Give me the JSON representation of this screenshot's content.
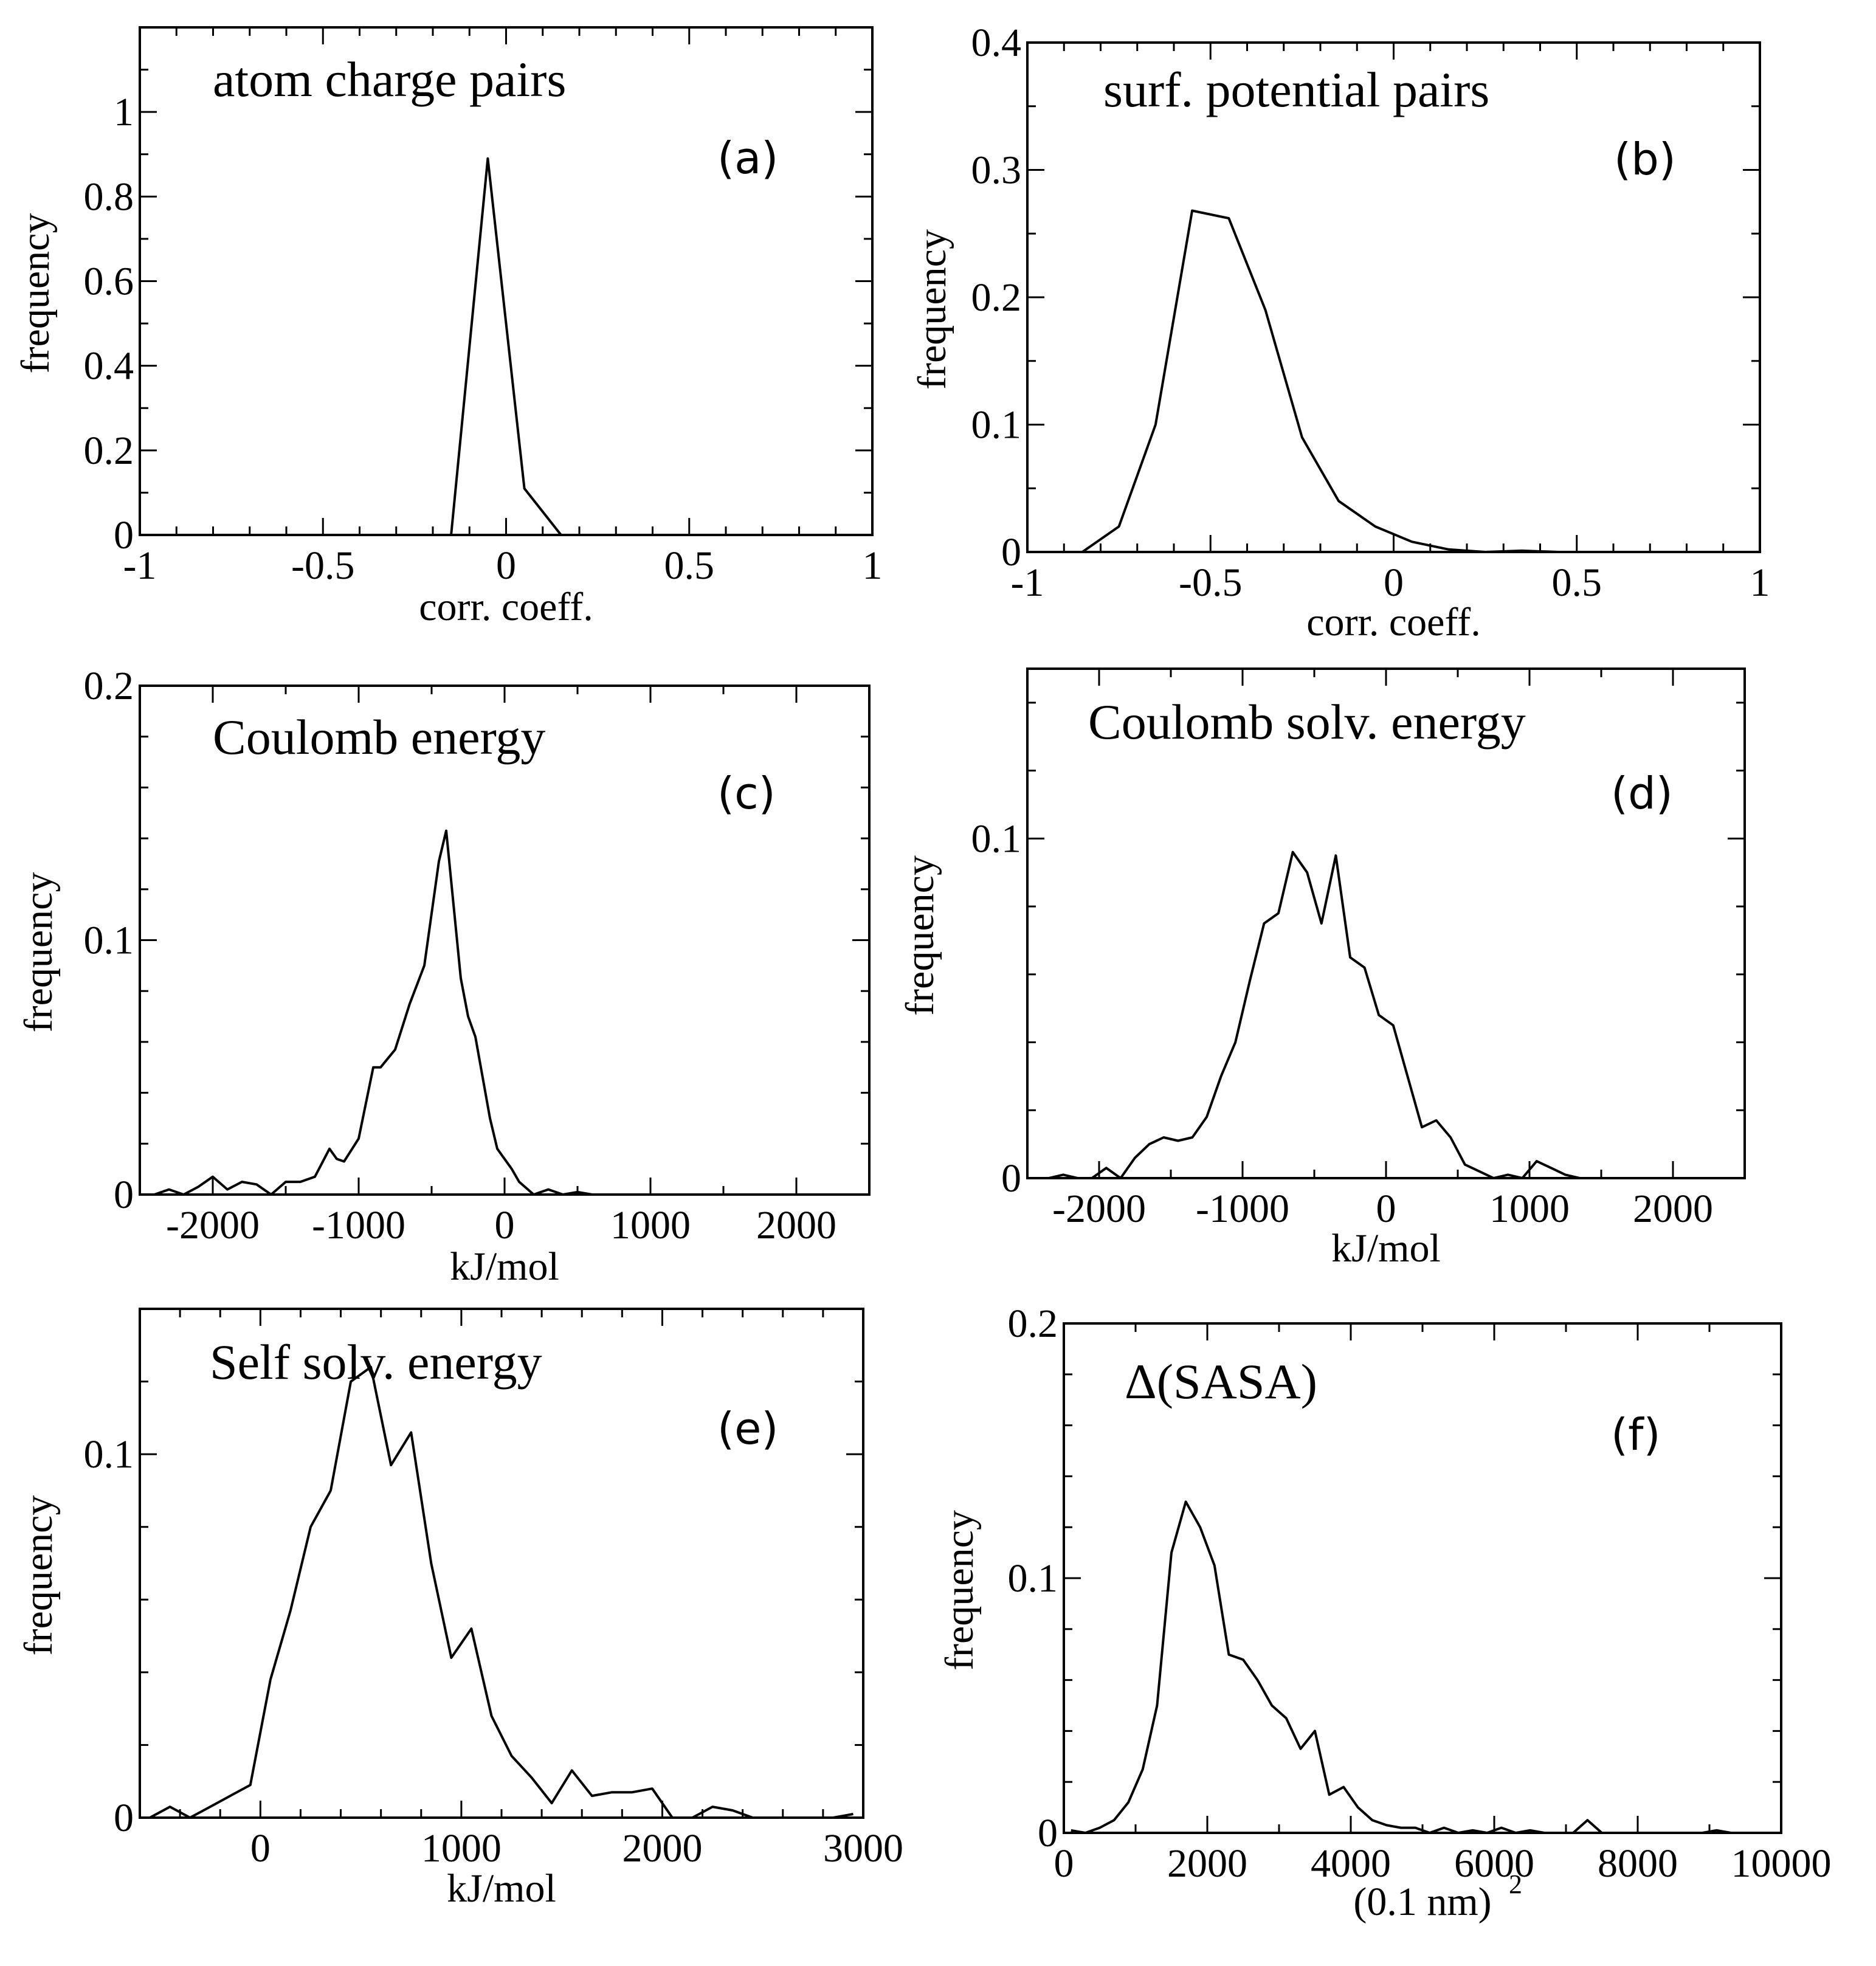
{
  "chart_data": [
    {
      "type": "line",
      "panel_label": "(a)",
      "title": "atom charge pairs",
      "xlabel": "corr. coeff.",
      "ylabel": "frequency",
      "xlim": [
        -1,
        1
      ],
      "ylim": [
        0,
        1.2
      ],
      "xticks": [
        -1,
        -0.5,
        0,
        0.5,
        1
      ],
      "xtick_labels": [
        "-1",
        "-0.5",
        "0",
        "0.5",
        "1"
      ],
      "yticks": [
        0,
        0.2,
        0.4,
        0.6,
        0.8,
        1
      ],
      "ytick_labels": [
        "0",
        "0.2",
        "0.4",
        "0.6",
        "0.8",
        "1"
      ],
      "x_minor_step": 0.1,
      "y_minor_step": 0.1,
      "grid": false,
      "x": [
        -1.0,
        -0.15,
        -0.05,
        0.05,
        0.15,
        1.0
      ],
      "y": [
        0,
        0,
        0.89,
        0.11,
        0,
        0
      ]
    },
    {
      "type": "line",
      "panel_label": "(b)",
      "title": "surf. potential pairs",
      "xlabel": "corr. coeff.",
      "ylabel": "frequency",
      "xlim": [
        -1,
        1
      ],
      "ylim": [
        0,
        0.4
      ],
      "xticks": [
        -1,
        -0.5,
        0,
        0.5,
        1
      ],
      "xtick_labels": [
        "-1",
        "-0.5",
        "0",
        "0.5",
        "1"
      ],
      "yticks": [
        0,
        0.1,
        0.2,
        0.3,
        0.4
      ],
      "ytick_labels": [
        "0",
        "0.1",
        "0.2",
        "0.3",
        "0.4"
      ],
      "x_minor_step": 0.1,
      "y_minor_step": 0.05,
      "grid": false,
      "x": [
        -0.95,
        -0.85,
        -0.75,
        -0.65,
        -0.55,
        -0.45,
        -0.35,
        -0.25,
        -0.15,
        -0.05,
        0.05,
        0.15,
        0.25,
        0.35,
        0.45,
        0.55
      ],
      "y": [
        0,
        0,
        0.02,
        0.1,
        0.268,
        0.262,
        0.19,
        0.09,
        0.04,
        0.02,
        0.008,
        0.002,
        0,
        0.001,
        0,
        0
      ]
    },
    {
      "type": "line",
      "panel_label": "(c)",
      "title": "Coulomb energy",
      "xlabel": "kJ/mol",
      "ylabel": "frequency",
      "xlim": [
        -2500,
        2500
      ],
      "ylim": [
        0,
        0.2
      ],
      "xticks": [
        -2000,
        -1000,
        0,
        1000,
        2000
      ],
      "xtick_labels": [
        "-2000",
        "-1000",
        "0",
        "1000",
        "2000"
      ],
      "yticks": [
        0,
        0.1,
        0.2
      ],
      "ytick_labels": [
        "0",
        "0.1",
        "0.2"
      ],
      "x_minor_step": 500,
      "y_minor_step": 0.02,
      "grid": false,
      "x": [
        -2400,
        -2300,
        -2200,
        -2100,
        -2000,
        -1900,
        -1800,
        -1700,
        -1600,
        -1500,
        -1400,
        -1300,
        -1200,
        -1150,
        -1100,
        -1000,
        -900,
        -850,
        -750,
        -650,
        -550,
        -450,
        -400,
        -300,
        -250,
        -200,
        -100,
        -50,
        50,
        100,
        200,
        300,
        400,
        500,
        600,
        650,
        750,
        800,
        900,
        1000,
        1100,
        2500
      ],
      "y": [
        0,
        0.002,
        0,
        0.003,
        0.007,
        0.002,
        0.005,
        0.004,
        0,
        0.005,
        0.005,
        0.007,
        0.018,
        0.014,
        0.013,
        0.022,
        0.05,
        0.05,
        0.057,
        0.075,
        0.09,
        0.131,
        0.143,
        0.085,
        0.07,
        0.062,
        0.03,
        0.018,
        0.01,
        0.005,
        0,
        0.002,
        0,
        0.001,
        0,
        0,
        0,
        0,
        0,
        0,
        0,
        0
      ]
    },
    {
      "type": "line",
      "panel_label": "(d)",
      "title": "Coulomb solv. energy",
      "xlabel": "kJ/mol",
      "ylabel": "frequency",
      "xlim": [
        -2500,
        2500
      ],
      "ylim": [
        0,
        0.15
      ],
      "xticks": [
        -2000,
        -1000,
        0,
        1000,
        2000
      ],
      "xtick_labels": [
        "-2000",
        "-1000",
        "0",
        "1000",
        "2000"
      ],
      "yticks": [
        0,
        0.1
      ],
      "ytick_labels": [
        "0",
        "0.1"
      ],
      "x_minor_step": 500,
      "y_minor_step": 0.02,
      "grid": false,
      "x": [
        -2450,
        -2350,
        -2250,
        -2150,
        -2050,
        -1950,
        -1850,
        -1750,
        -1650,
        -1550,
        -1450,
        -1350,
        -1250,
        -1150,
        -1050,
        -950,
        -850,
        -750,
        -650,
        -550,
        -450,
        -350,
        -250,
        -150,
        -50,
        50,
        150,
        250,
        350,
        450,
        550,
        650,
        750,
        850,
        950,
        1050,
        1150,
        1250,
        1350,
        1450
      ],
      "y": [
        0,
        0,
        0.001,
        0,
        0,
        0.003,
        0,
        0.006,
        0.01,
        0.012,
        0.011,
        0.012,
        0.018,
        0.03,
        0.04,
        0.058,
        0.075,
        0.078,
        0.096,
        0.09,
        0.075,
        0.095,
        0.065,
        0.062,
        0.048,
        0.045,
        0.03,
        0.015,
        0.017,
        0.012,
        0.004,
        0.002,
        0,
        0.001,
        0,
        0.005,
        0.003,
        0.001,
        0,
        0
      ]
    },
    {
      "type": "line",
      "panel_label": "(e)",
      "title": "Self solv. energy",
      "xlabel": "kJ/mol",
      "ylabel": "frequency",
      "xlim": [
        -600,
        3000
      ],
      "ylim": [
        0,
        0.14
      ],
      "xticks": [
        0,
        1000,
        2000,
        3000
      ],
      "xtick_labels": [
        "0",
        "1000",
        "2000",
        "3000"
      ],
      "yticks": [
        0,
        0.1
      ],
      "ytick_labels": [
        "0",
        "0.1"
      ],
      "x_minor_step": 200,
      "y_minor_step": 0.02,
      "grid": false,
      "x": [
        -550,
        -450,
        -350,
        -250,
        -150,
        -50,
        50,
        150,
        250,
        350,
        450,
        550,
        650,
        750,
        850,
        950,
        1050,
        1150,
        1250,
        1350,
        1450,
        1550,
        1650,
        1750,
        1850,
        1950,
        2050,
        2150,
        2250,
        2350,
        2450,
        2550,
        2650,
        2750,
        2850,
        2950
      ],
      "y": [
        0,
        0.003,
        0,
        0.003,
        0.006,
        0.009,
        0.038,
        0.057,
        0.08,
        0.09,
        0.12,
        0.124,
        0.097,
        0.106,
        0.07,
        0.044,
        0.052,
        0.028,
        0.017,
        0.011,
        0.004,
        0.013,
        0.006,
        0.007,
        0.007,
        0.008,
        0,
        0,
        0.003,
        0.002,
        0,
        0,
        0,
        0,
        0,
        0.001
      ]
    },
    {
      "type": "line",
      "panel_label": "(f)",
      "title": "Δ(SASA)",
      "xlabel": "(0.1 nm)",
      "xlabel_superscript": "2",
      "ylabel": "frequency",
      "xlim": [
        0,
        10000
      ],
      "ylim": [
        0,
        0.2
      ],
      "xticks": [
        0,
        2000,
        4000,
        6000,
        8000,
        10000
      ],
      "xtick_labels": [
        "0",
        "2000",
        "4000",
        "6000",
        "8000",
        "10000"
      ],
      "yticks": [
        0,
        0.1,
        0.2
      ],
      "ytick_labels": [
        "0",
        "0.1",
        "0.2"
      ],
      "x_minor_step": 1000,
      "y_minor_step": 0.02,
      "grid": false,
      "x": [
        100,
        300,
        500,
        700,
        900,
        1100,
        1300,
        1500,
        1700,
        1900,
        2100,
        2300,
        2500,
        2700,
        2900,
        3100,
        3300,
        3500,
        3700,
        3900,
        4100,
        4300,
        4500,
        4700,
        4900,
        5100,
        5300,
        5500,
        5700,
        5900,
        6100,
        6300,
        6500,
        6700,
        6900,
        7100,
        7300,
        7500,
        7700,
        7900,
        8100,
        8300,
        8500,
        8700,
        8900,
        9100,
        9300,
        9500,
        9700
      ],
      "y": [
        0.001,
        0,
        0.002,
        0.005,
        0.012,
        0.025,
        0.05,
        0.11,
        0.13,
        0.12,
        0.105,
        0.07,
        0.068,
        0.06,
        0.05,
        0.045,
        0.033,
        0.04,
        0.015,
        0.018,
        0.01,
        0.005,
        0.003,
        0.002,
        0.002,
        0,
        0.002,
        0,
        0.001,
        0,
        0.002,
        0,
        0.001,
        0,
        0,
        0,
        0.005,
        0,
        0,
        0,
        0,
        0,
        0,
        0,
        0,
        0.001,
        0,
        0,
        0
      ]
    }
  ]
}
